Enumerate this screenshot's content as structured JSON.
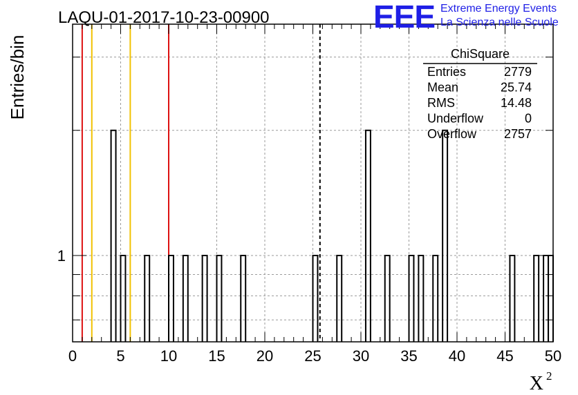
{
  "title": "LAQU-01-2017-10-23-00900",
  "logo": {
    "mark": "EEE",
    "line1": "Extreme Energy Events",
    "line2": "La Scienza nelle Scuole"
  },
  "colors": {
    "logo": "#1f1fe6",
    "hist": "#000000",
    "red_line": "#dd1111",
    "yellow_line": "#f2c200",
    "grid": "#9a9a9a"
  },
  "chart_data": {
    "type": "bar",
    "xlabel": "X",
    "xlabel_superscript": "2",
    "ylabel": "Entries/bin",
    "xlim": [
      0,
      50
    ],
    "ylog": true,
    "ylim": [
      0.62,
      3.6
    ],
    "x_ticks": [
      "0",
      "5",
      "10",
      "15",
      "20",
      "25",
      "30",
      "35",
      "40",
      "45",
      "50"
    ],
    "y_tick_labels": [
      {
        "value": 1,
        "label": "1"
      }
    ],
    "grid": true,
    "bin_width": 0.5,
    "bins": [
      {
        "x": 4.0,
        "value": 2
      },
      {
        "x": 5.0,
        "value": 1
      },
      {
        "x": 7.5,
        "value": 1
      },
      {
        "x": 10.0,
        "value": 1
      },
      {
        "x": 11.5,
        "value": 1
      },
      {
        "x": 13.5,
        "value": 1
      },
      {
        "x": 15.0,
        "value": 1
      },
      {
        "x": 17.5,
        "value": 1
      },
      {
        "x": 25.0,
        "value": 1
      },
      {
        "x": 27.5,
        "value": 1
      },
      {
        "x": 30.5,
        "value": 2
      },
      {
        "x": 32.5,
        "value": 1
      },
      {
        "x": 35.0,
        "value": 1
      },
      {
        "x": 36.0,
        "value": 1
      },
      {
        "x": 37.5,
        "value": 1
      },
      {
        "x": 38.5,
        "value": 2
      },
      {
        "x": 45.5,
        "value": 1
      },
      {
        "x": 48.0,
        "value": 1
      },
      {
        "x": 49.0,
        "value": 1
      },
      {
        "x": 49.5,
        "value": 1
      }
    ],
    "vertical_lines": [
      {
        "x": 1,
        "color": "red"
      },
      {
        "x": 2,
        "color": "yellow"
      },
      {
        "x": 6,
        "color": "yellow"
      },
      {
        "x": 10,
        "color": "red"
      }
    ],
    "mean_line": 25.74,
    "stats_box": {
      "title": "ChiSquare",
      "rows": [
        {
          "label": "Entries",
          "value": "2779"
        },
        {
          "label": "Mean",
          "value": "25.74"
        },
        {
          "label": "RMS",
          "value": "14.48"
        },
        {
          "label": "Underflow",
          "value": "0"
        },
        {
          "label": "Overflow",
          "value": "2757"
        }
      ]
    }
  }
}
